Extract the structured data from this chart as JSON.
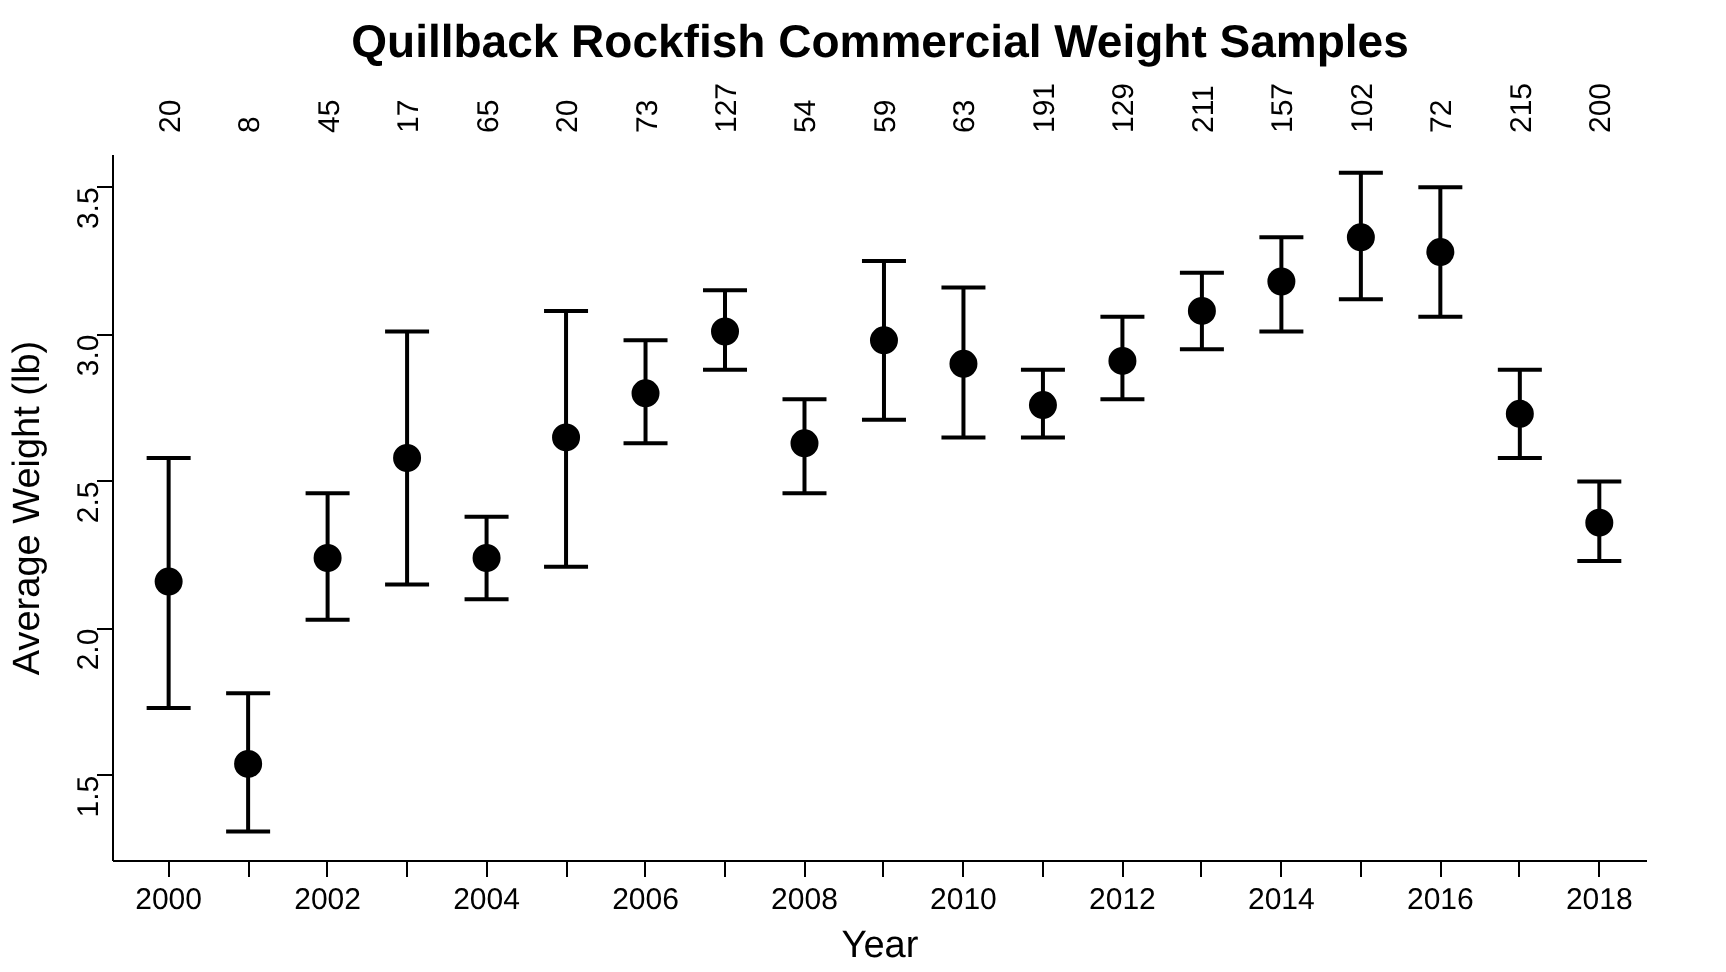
{
  "chart_data": {
    "type": "scatter",
    "title": "Quillback Rockfish Commercial Weight Samples",
    "xlabel": "Year",
    "ylabel": "Average Weight (lb)",
    "x": [
      2000,
      2001,
      2002,
      2003,
      2004,
      2005,
      2006,
      2007,
      2008,
      2009,
      2010,
      2011,
      2012,
      2013,
      2014,
      2015,
      2016,
      2017,
      2018
    ],
    "values": [
      2.16,
      1.54,
      2.24,
      2.58,
      2.24,
      2.65,
      2.8,
      3.01,
      2.63,
      2.98,
      2.9,
      2.76,
      2.91,
      3.08,
      3.18,
      3.33,
      3.28,
      2.73,
      2.36
    ],
    "errors": [
      [
        1.73,
        2.58
      ],
      [
        1.31,
        1.78
      ],
      [
        2.03,
        2.46
      ],
      [
        2.15,
        3.01
      ],
      [
        2.1,
        2.38
      ],
      [
        2.21,
        3.08
      ],
      [
        2.63,
        2.98
      ],
      [
        2.88,
        3.15
      ],
      [
        2.46,
        2.78
      ],
      [
        2.71,
        3.25
      ],
      [
        2.65,
        3.16
      ],
      [
        2.65,
        2.88
      ],
      [
        2.78,
        3.06
      ],
      [
        2.95,
        3.21
      ],
      [
        3.01,
        3.33
      ],
      [
        3.12,
        3.55
      ],
      [
        3.06,
        3.5
      ],
      [
        2.58,
        2.88
      ],
      [
        2.23,
        2.5
      ]
    ],
    "color": "#000000",
    "marker": "circle",
    "grid": false,
    "xlim": [
      1999.3,
      2018.6
    ],
    "ylim": [
      1.21,
      3.61
    ],
    "xticks": [
      2000,
      {
        "value": 2001,
        "label": null
      },
      2002,
      {
        "value": 2003,
        "label": null
      },
      2004,
      {
        "value": 2005,
        "label": null
      },
      2006,
      {
        "value": 2007,
        "label": null
      },
      2008,
      {
        "value": 2009,
        "label": null
      },
      2010,
      {
        "value": 2011,
        "label": null
      },
      2012,
      {
        "value": 2013,
        "label": null
      },
      2014,
      {
        "value": 2015,
        "label": null
      },
      2016,
      {
        "value": 2017,
        "label": null
      },
      2018
    ],
    "yticks": [
      1.5,
      {
        "value": 2.0,
        "label": "2.0"
      },
      2.5,
      {
        "value": 3.0,
        "label": "3.0"
      },
      3.5
    ],
    "annotations": [
      "20",
      "8",
      "45",
      "17",
      "65",
      "20",
      "73",
      "127",
      "54",
      "59",
      "63",
      "191",
      "129",
      "211",
      "157",
      "102",
      "72",
      "215",
      "200"
    ]
  }
}
